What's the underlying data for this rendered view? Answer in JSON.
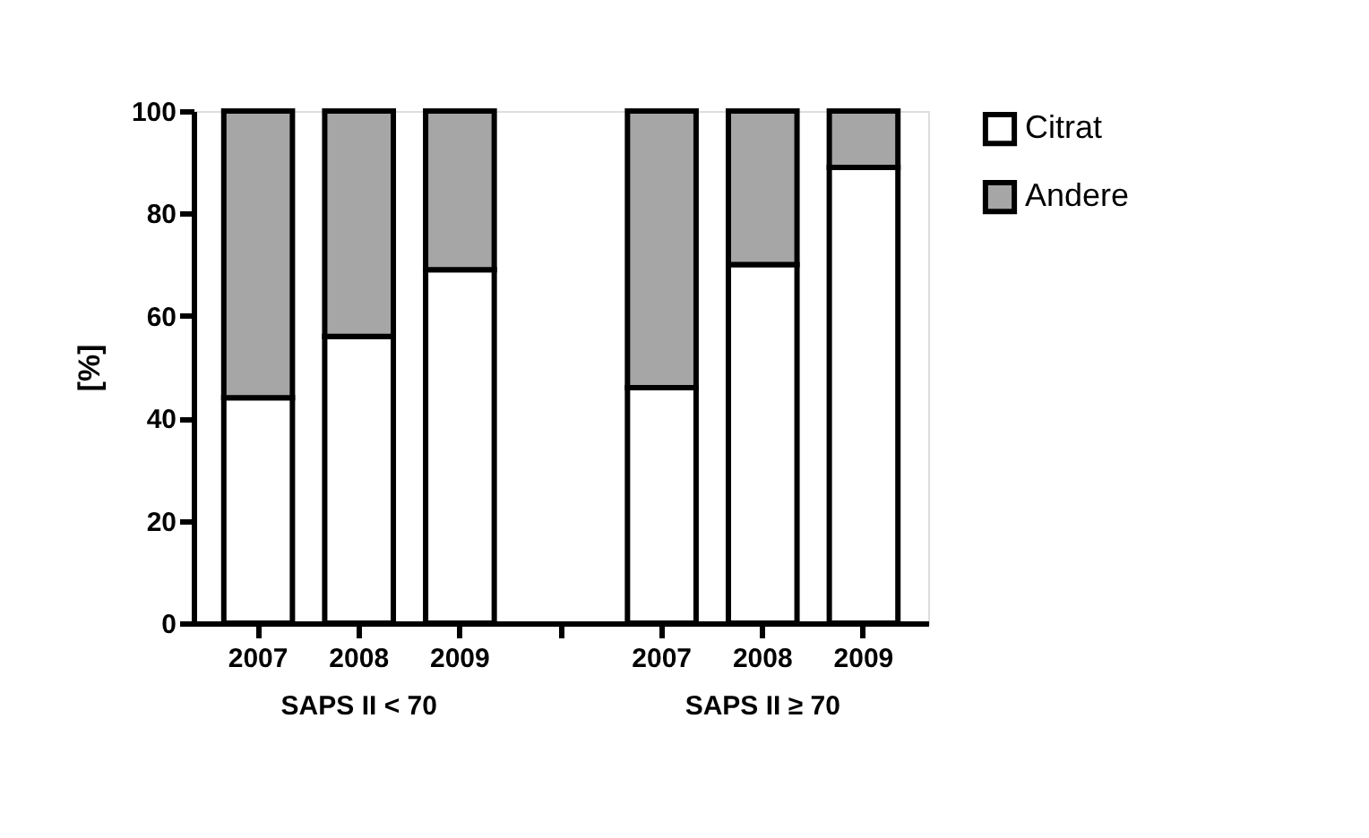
{
  "chart_data": {
    "type": "bar",
    "stacked": true,
    "ylabel": "[%]",
    "categories": [
      "2007",
      "2008",
      "2009",
      null,
      "2007",
      "2008",
      "2009"
    ],
    "series": [
      {
        "name": "Citrat",
        "color": "#ffffff",
        "values": [
          44,
          56,
          69,
          null,
          46,
          70,
          89
        ]
      },
      {
        "name": "Andere",
        "color": "#a6a6a6",
        "values": [
          56,
          44,
          31,
          null,
          54,
          30,
          11
        ]
      }
    ],
    "ylim": [
      0,
      100
    ],
    "yticks": [
      0,
      20,
      40,
      60,
      80,
      100
    ],
    "grid": false,
    "legend": "top right",
    "annotations": [
      "SAPS II < 70",
      "SAPS II ≥ 70"
    ]
  }
}
